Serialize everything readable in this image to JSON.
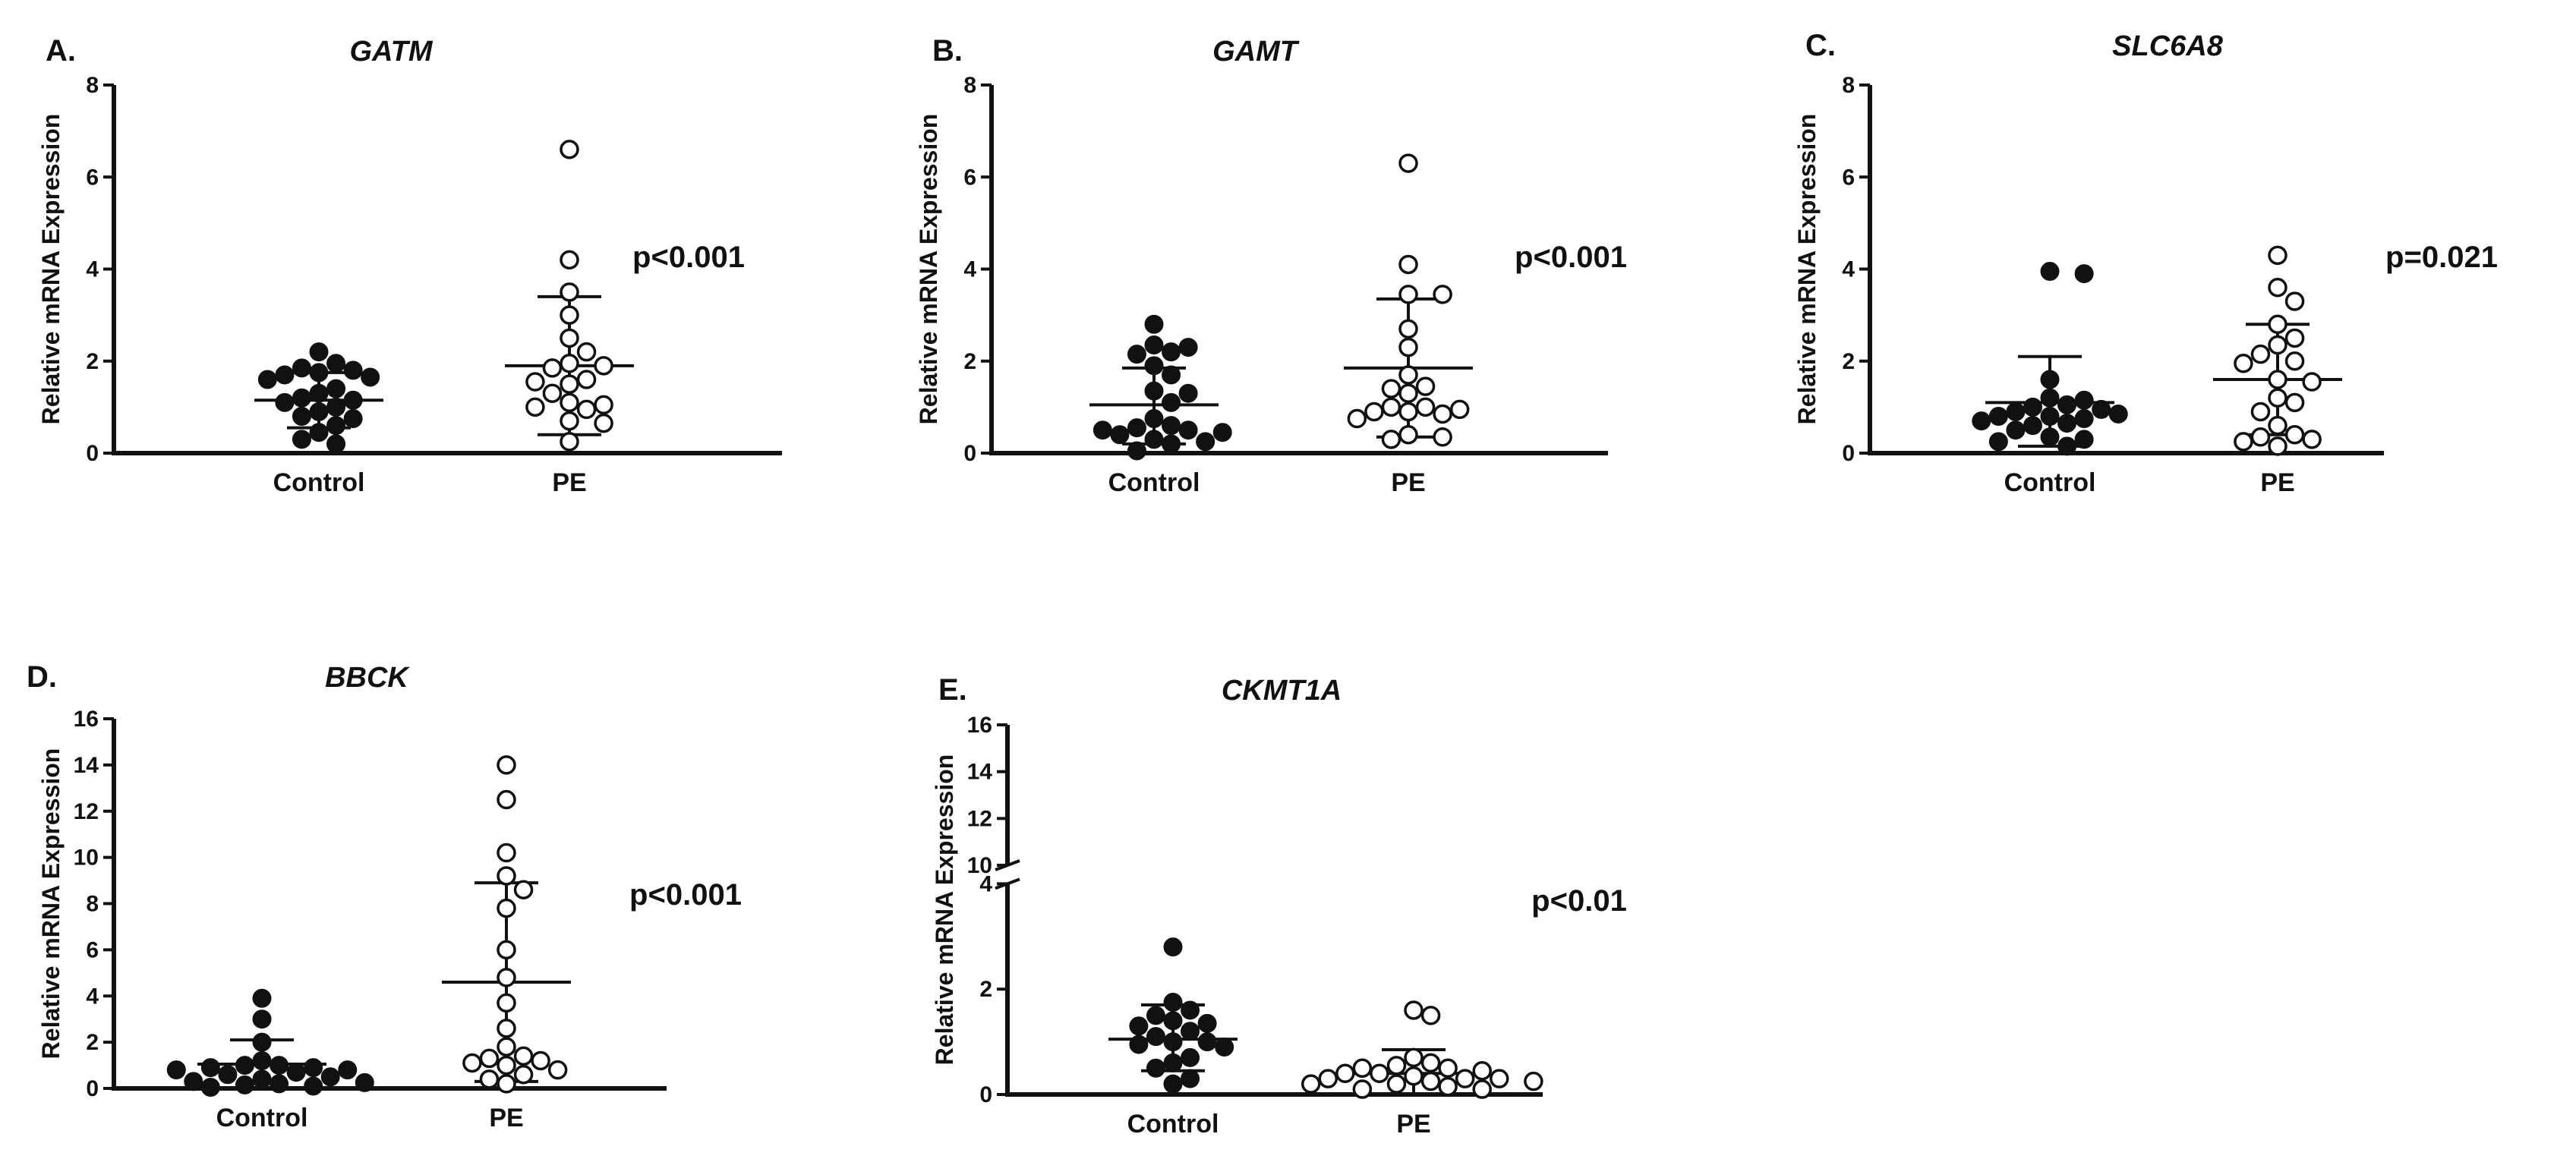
{
  "chart_data": [
    {
      "type": "scatter",
      "panel": "A.",
      "title": "GATM",
      "ylabel": "Relative mRNA Expression",
      "categories": [
        "Control",
        "PE"
      ],
      "yticks": [
        0,
        2,
        4,
        6,
        8
      ],
      "ylim": [
        0,
        8
      ],
      "pvalue": "p<0.001",
      "series": [
        {
          "name": "Control",
          "marker": "filled",
          "mean": 1.15,
          "sd_low": 0.55,
          "sd_high": 1.75,
          "values": [
            2.2,
            1.95,
            1.85,
            1.8,
            1.75,
            1.7,
            1.65,
            1.6,
            1.4,
            1.3,
            1.2,
            1.15,
            1.1,
            1.0,
            0.9,
            0.8,
            0.75,
            0.6,
            0.45,
            0.3,
            0.2
          ]
        },
        {
          "name": "PE",
          "marker": "open",
          "mean": 1.9,
          "sd_low": 0.4,
          "sd_high": 3.4,
          "values": [
            6.6,
            4.2,
            3.5,
            3.0,
            2.5,
            2.2,
            1.95,
            1.9,
            1.85,
            1.6,
            1.55,
            1.5,
            1.3,
            1.1,
            1.05,
            1.0,
            0.95,
            0.7,
            0.65,
            0.25
          ]
        }
      ]
    },
    {
      "type": "scatter",
      "panel": "B.",
      "title": "GAMT",
      "ylabel": "Relative mRNA Expression",
      "categories": [
        "Control",
        "PE"
      ],
      "yticks": [
        0,
        2,
        4,
        6,
        8
      ],
      "ylim": [
        0,
        8
      ],
      "pvalue": "p<0.001",
      "series": [
        {
          "name": "Control",
          "marker": "filled",
          "mean": 1.05,
          "sd_low": 0.2,
          "sd_high": 1.85,
          "values": [
            2.8,
            2.35,
            2.3,
            2.2,
            2.15,
            1.9,
            1.7,
            1.35,
            1.3,
            1.1,
            0.75,
            0.6,
            0.55,
            0.5,
            0.5,
            0.45,
            0.4,
            0.3,
            0.25,
            0.2,
            0.05
          ]
        },
        {
          "name": "PE",
          "marker": "open",
          "mean": 1.85,
          "sd_low": 0.35,
          "sd_high": 3.35,
          "values": [
            6.3,
            4.1,
            3.45,
            3.45,
            2.7,
            2.3,
            1.7,
            1.45,
            1.4,
            1.3,
            1.0,
            1.0,
            0.95,
            0.9,
            0.9,
            0.85,
            0.75,
            0.4,
            0.35,
            0.3
          ]
        }
      ]
    },
    {
      "type": "scatter",
      "panel": "C.",
      "title": "SLC6A8",
      "ylabel": "Relative mRNA Expression",
      "categories": [
        "Control",
        "PE"
      ],
      "yticks": [
        0,
        2,
        4,
        6,
        8
      ],
      "ylim": [
        0,
        8
      ],
      "pvalue": "p=0.021",
      "series": [
        {
          "name": "Control",
          "marker": "filled",
          "mean": 1.1,
          "sd_low": 0.15,
          "sd_high": 2.1,
          "values": [
            3.95,
            3.9,
            1.6,
            1.2,
            1.15,
            1.05,
            1.0,
            0.95,
            0.9,
            0.85,
            0.8,
            0.8,
            0.75,
            0.7,
            0.65,
            0.6,
            0.5,
            0.35,
            0.3,
            0.25,
            0.15
          ]
        },
        {
          "name": "PE",
          "marker": "open",
          "mean": 1.6,
          "sd_low": 0.4,
          "sd_high": 2.8,
          "values": [
            4.3,
            3.6,
            3.3,
            2.8,
            2.5,
            2.35,
            2.15,
            2.0,
            1.95,
            1.6,
            1.55,
            1.2,
            1.1,
            0.9,
            0.6,
            0.4,
            0.35,
            0.3,
            0.25,
            0.15
          ]
        }
      ]
    },
    {
      "type": "scatter",
      "panel": "D.",
      "title": "BBCK",
      "ylabel": "Relative mRNA Expression",
      "categories": [
        "Control",
        "PE"
      ],
      "yticks": [
        0,
        2,
        4,
        6,
        8,
        10,
        12,
        14,
        16
      ],
      "ylim": [
        0,
        16
      ],
      "pvalue": "p<0.001",
      "series": [
        {
          "name": "Control",
          "marker": "filled",
          "mean": 1.05,
          "sd_low": 0.0,
          "sd_high": 2.1,
          "values": [
            3.9,
            3.0,
            2.0,
            1.2,
            1.0,
            1.0,
            0.9,
            0.9,
            0.8,
            0.8,
            0.7,
            0.6,
            0.5,
            0.4,
            0.3,
            0.25,
            0.2,
            0.15,
            0.1,
            0.05
          ]
        },
        {
          "name": "PE",
          "marker": "open",
          "mean": 4.6,
          "sd_low": 0.3,
          "sd_high": 8.9,
          "values": [
            14.0,
            12.5,
            10.2,
            9.2,
            8.6,
            7.8,
            6.0,
            4.8,
            3.7,
            2.6,
            1.8,
            1.4,
            1.3,
            1.2,
            1.1,
            1.0,
            0.8,
            0.6,
            0.4,
            0.2
          ]
        }
      ]
    },
    {
      "type": "scatter",
      "panel": "E.",
      "title": "CKMT1A",
      "ylabel": "Relative mRNA Expression",
      "categories": [
        "Control",
        "PE"
      ],
      "yticks": [
        0,
        2,
        4,
        10,
        12,
        14,
        16
      ],
      "axis_break": [
        4,
        10
      ],
      "ylim": [
        0,
        16
      ],
      "pvalue": "p<0.01",
      "series": [
        {
          "name": "Control",
          "marker": "filled",
          "mean": 1.05,
          "sd_low": 0.45,
          "sd_high": 1.7,
          "values": [
            2.8,
            1.75,
            1.6,
            1.5,
            1.4,
            1.35,
            1.3,
            1.2,
            1.1,
            1.0,
            1.0,
            0.95,
            0.9,
            0.7,
            0.6,
            0.5,
            0.3,
            0.2
          ]
        },
        {
          "name": "PE",
          "marker": "open",
          "mean": 0.4,
          "sd_low": 0.0,
          "sd_high": 0.85,
          "values": [
            1.6,
            1.5,
            0.7,
            0.6,
            0.55,
            0.5,
            0.5,
            0.45,
            0.4,
            0.4,
            0.35,
            0.3,
            0.3,
            0.3,
            0.25,
            0.25,
            0.2,
            0.2,
            0.15,
            0.1,
            0.1
          ]
        }
      ]
    }
  ]
}
